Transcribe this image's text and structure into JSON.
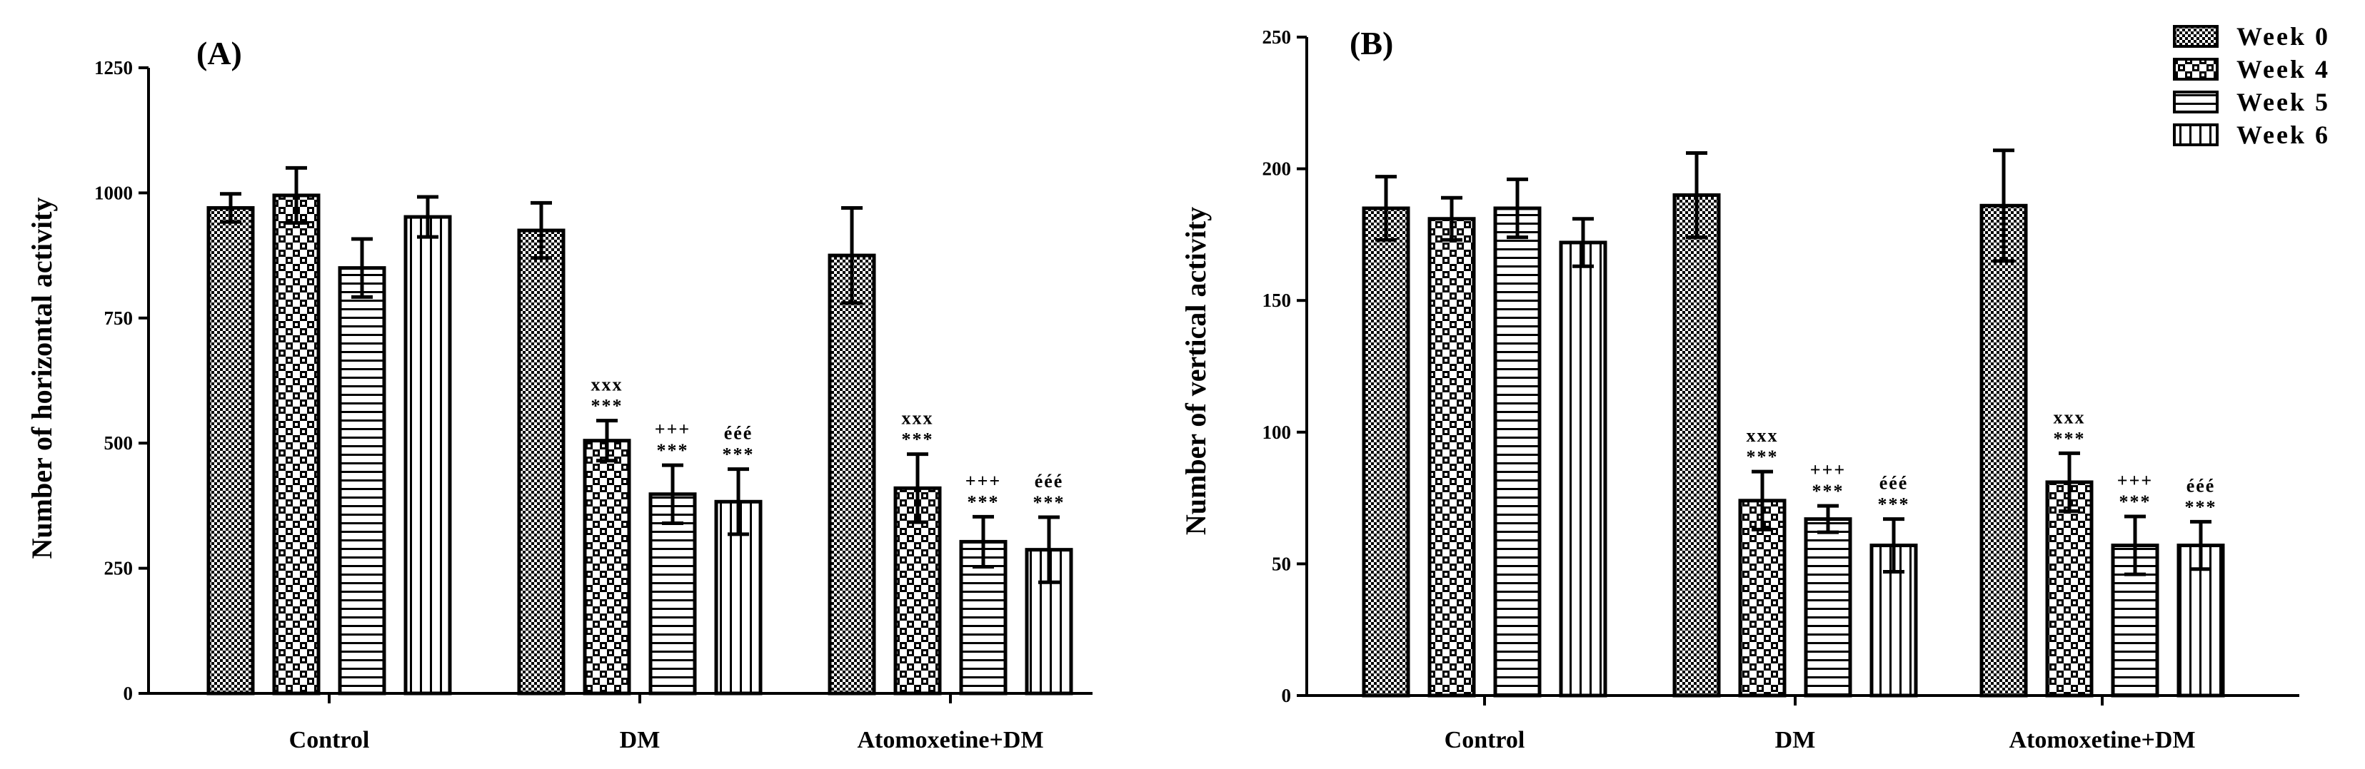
{
  "chart_data": [
    {
      "type": "bar",
      "panel_label": "(A)",
      "ylabel": "Number of horizontal activity",
      "xlabel": "",
      "ylim": [
        0,
        1250
      ],
      "yticks": [
        "0",
        "250",
        "500",
        "750",
        "1000",
        "1250"
      ],
      "categories": [
        "Control",
        "DM",
        "Atomoxetine+DM"
      ],
      "series": [
        {
          "name": "Week 0",
          "values": [
            970,
            925,
            875
          ],
          "errors": [
            28,
            55,
            95
          ]
        },
        {
          "name": "Week 4",
          "values": [
            995,
            505,
            410
          ],
          "errors": [
            55,
            40,
            68
          ]
        },
        {
          "name": "Week 5",
          "values": [
            850,
            398,
            303
          ],
          "errors": [
            58,
            58,
            50
          ]
        },
        {
          "name": "Week 6",
          "values": [
            952,
            383,
            287
          ],
          "errors": [
            40,
            65,
            65
          ]
        }
      ],
      "annotations": [
        {
          "category": "DM",
          "series": "Week 4",
          "lines": [
            "xxx",
            "***"
          ]
        },
        {
          "category": "DM",
          "series": "Week 5",
          "lines": [
            "+++",
            "***"
          ]
        },
        {
          "category": "DM",
          "series": "Week 6",
          "lines": [
            "ééé",
            "***"
          ]
        },
        {
          "category": "Atomoxetine+DM",
          "series": "Week 4",
          "lines": [
            "xxx",
            "***"
          ]
        },
        {
          "category": "Atomoxetine+DM",
          "series": "Week 5",
          "lines": [
            "+++",
            "***"
          ]
        },
        {
          "category": "Atomoxetine+DM",
          "series": "Week 6",
          "lines": [
            "ééé",
            "***"
          ]
        }
      ]
    },
    {
      "type": "bar",
      "panel_label": "(B)",
      "ylabel": "Number of vertical activity",
      "xlabel": "",
      "ylim": [
        0,
        250
      ],
      "yticks": [
        "0",
        "50",
        "100",
        "150",
        "200",
        "250"
      ],
      "categories": [
        "Control",
        "DM",
        "Atomoxetine+DM"
      ],
      "legend": [
        "Week 0",
        "Week 4",
        "Week 5",
        "Week 6"
      ],
      "legend_position": "top-right",
      "series": [
        {
          "name": "Week 0",
          "values": [
            185,
            190,
            186
          ],
          "errors": [
            12,
            16,
            21
          ]
        },
        {
          "name": "Week 4",
          "values": [
            181,
            74,
            81
          ],
          "errors": [
            8,
            11,
            11
          ]
        },
        {
          "name": "Week 5",
          "values": [
            185,
            67,
            57
          ],
          "errors": [
            11,
            5,
            11
          ]
        },
        {
          "name": "Week 6",
          "values": [
            172,
            57,
            57
          ],
          "errors": [
            9,
            10,
            9
          ]
        }
      ],
      "annotations": [
        {
          "category": "DM",
          "series": "Week 4",
          "lines": [
            "xxx",
            "***"
          ]
        },
        {
          "category": "DM",
          "series": "Week 5",
          "lines": [
            "+++",
            "***"
          ]
        },
        {
          "category": "DM",
          "series": "Week 6",
          "lines": [
            "ééé",
            "***"
          ]
        },
        {
          "category": "Atomoxetine+DM",
          "series": "Week 4",
          "lines": [
            "xxx",
            "***"
          ]
        },
        {
          "category": "Atomoxetine+DM",
          "series": "Week 5",
          "lines": [
            "+++",
            "***"
          ]
        },
        {
          "category": "Atomoxetine+DM",
          "series": "Week 6",
          "lines": [
            "ééé",
            "***"
          ]
        }
      ]
    }
  ]
}
